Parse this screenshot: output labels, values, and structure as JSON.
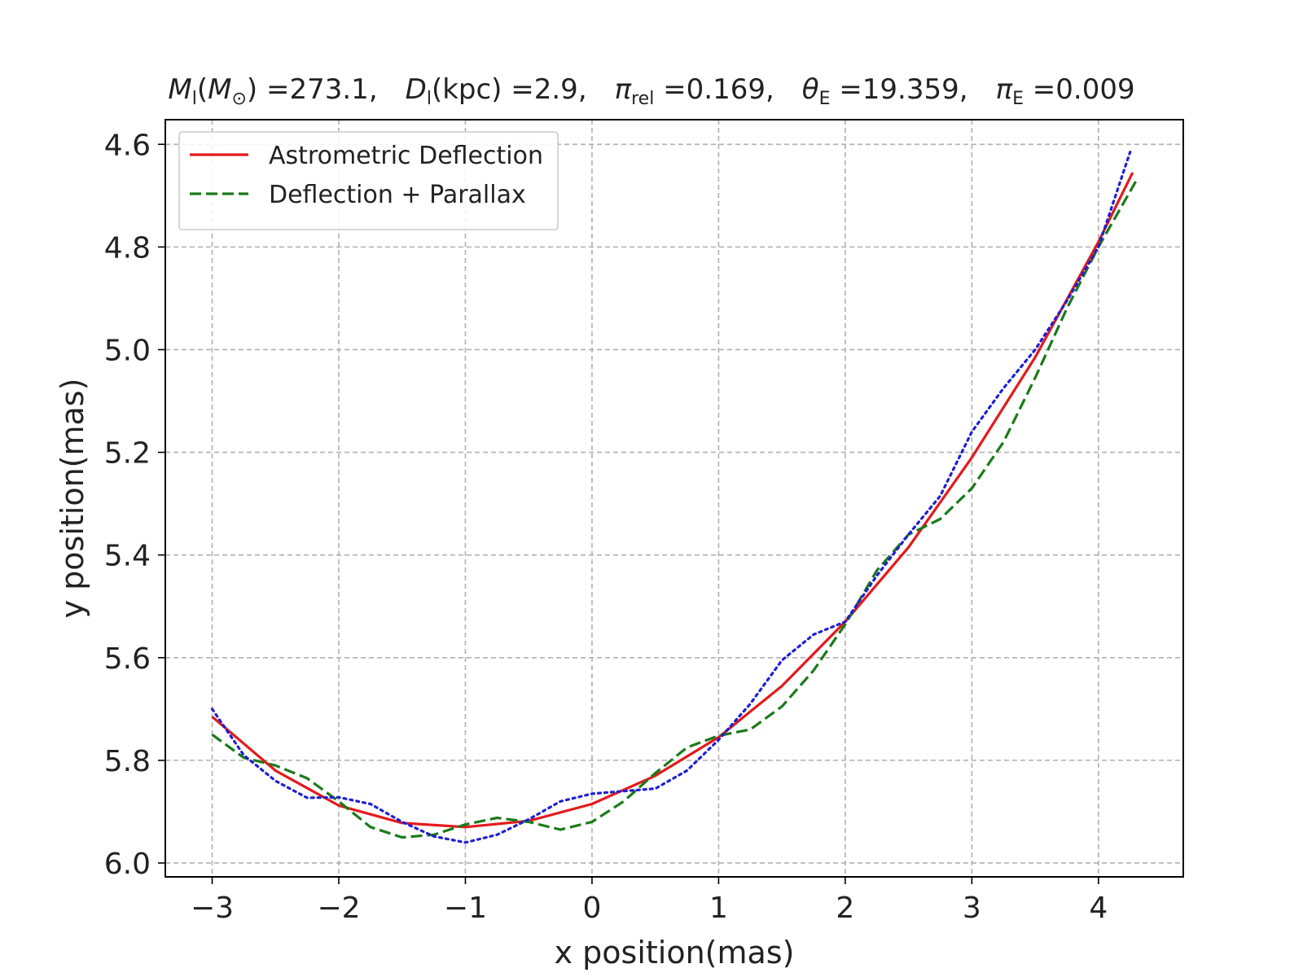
{
  "chart_data": {
    "type": "line",
    "title": {
      "parts": [
        {
          "main": "M",
          "sub": "l",
          "paren": "M",
          "paren_sub": "⊙",
          "value": "273.1"
        },
        {
          "main": "D",
          "sub": "l",
          "unit": "kpc",
          "value": "2.9"
        },
        {
          "main": "π",
          "sub": "rel",
          "value": "0.169"
        },
        {
          "main": "θ",
          "sub": "E",
          "value": "19.359"
        },
        {
          "main": "π",
          "sub": "E",
          "value": "0.009"
        }
      ]
    },
    "xlabel": "x position(mas)",
    "ylabel": "y position(mas)",
    "xlim": [
      -3.37,
      4.67
    ],
    "ylim": [
      6.027,
      4.552
    ],
    "y_inverted": true,
    "xticks": [
      -3,
      -2,
      -1,
      0,
      1,
      2,
      3,
      4
    ],
    "xtick_labels": [
      "−3",
      "−2",
      "−1",
      "0",
      "1",
      "2",
      "3",
      "4"
    ],
    "yticks": [
      4.6,
      4.8,
      5.0,
      5.2,
      5.4,
      5.6,
      5.8,
      6.0
    ],
    "ytick_labels": [
      "4.6",
      "4.8",
      "5.0",
      "5.2",
      "5.4",
      "5.6",
      "5.8",
      "6.0"
    ],
    "grid": true,
    "legend_position": "top-left",
    "series": [
      {
        "name": "Astrometric Deflection",
        "color": "#e31a1c",
        "style": "solid",
        "x": [
          -3.0,
          -2.5,
          -2.0,
          -1.5,
          -1.0,
          -0.5,
          0.0,
          0.5,
          1.0,
          1.5,
          2.0,
          2.5,
          3.0,
          3.5,
          4.0,
          4.27
        ],
        "y": [
          5.715,
          5.82,
          5.888,
          5.922,
          5.93,
          5.918,
          5.885,
          5.83,
          5.755,
          5.655,
          5.53,
          5.385,
          5.21,
          5.015,
          4.79,
          4.655
        ]
      },
      {
        "name": "Deflection + Parallax",
        "color": "#1a7a1a",
        "style": "dashed",
        "x": [
          -3.0,
          -2.75,
          -2.5,
          -2.25,
          -2.0,
          -1.75,
          -1.5,
          -1.25,
          -1.0,
          -0.75,
          -0.5,
          -0.25,
          0.0,
          0.25,
          0.5,
          0.75,
          1.0,
          1.25,
          1.5,
          1.75,
          2.0,
          2.25,
          2.5,
          2.75,
          3.0,
          3.25,
          3.5,
          3.75,
          4.0,
          4.3
        ],
        "y": [
          5.75,
          5.795,
          5.81,
          5.835,
          5.88,
          5.93,
          5.95,
          5.945,
          5.925,
          5.912,
          5.92,
          5.935,
          5.92,
          5.88,
          5.825,
          5.775,
          5.752,
          5.74,
          5.695,
          5.625,
          5.535,
          5.43,
          5.36,
          5.33,
          5.27,
          5.18,
          5.055,
          4.92,
          4.8,
          4.67
        ]
      },
      {
        "color": "#1f1fd4",
        "style": "dotted",
        "x": [
          -3.0,
          -2.75,
          -2.5,
          -2.25,
          -2.0,
          -1.75,
          -1.5,
          -1.25,
          -1.0,
          -0.75,
          -0.5,
          -0.25,
          0.0,
          0.25,
          0.5,
          0.75,
          1.0,
          1.25,
          1.5,
          1.75,
          2.0,
          2.25,
          2.5,
          2.75,
          3.0,
          3.25,
          3.5,
          3.75,
          4.0,
          4.25
        ],
        "y": [
          5.7,
          5.79,
          5.84,
          5.873,
          5.872,
          5.885,
          5.92,
          5.948,
          5.96,
          5.945,
          5.915,
          5.88,
          5.865,
          5.86,
          5.855,
          5.82,
          5.76,
          5.69,
          5.605,
          5.555,
          5.53,
          5.44,
          5.36,
          5.285,
          5.16,
          5.075,
          5.0,
          4.905,
          4.8,
          4.615
        ]
      }
    ]
  }
}
